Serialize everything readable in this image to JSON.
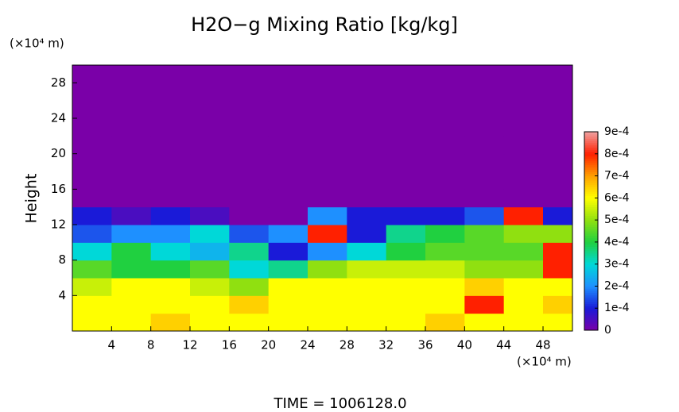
{
  "chart_data": {
    "type": "heatmap",
    "title": "H2O−g Mixing Ratio [kg/kg]",
    "x_unit": "(×10⁴ m)",
    "y_unit": "(×10⁴ m)",
    "y_label": "Height",
    "footer": "TIME  =  1006128.0",
    "xbins": [
      0,
      4,
      8,
      12,
      16,
      20,
      24,
      28,
      32,
      36,
      40,
      44,
      48,
      51
    ],
    "ybins": [
      0,
      2,
      4,
      6,
      8,
      10,
      12,
      14,
      16,
      18,
      20,
      22,
      24,
      26,
      28,
      30
    ],
    "xlim": [
      0,
      51
    ],
    "ylim": [
      0,
      30
    ],
    "xticks": [
      4,
      8,
      12,
      16,
      20,
      24,
      28,
      32,
      36,
      40,
      44,
      48
    ],
    "yticks": [
      4,
      8,
      12,
      16,
      20,
      24,
      28
    ],
    "z": [
      [
        0.0006,
        0.0006,
        0.00065,
        0.0006,
        0.0006,
        0.0006,
        0.0006,
        0.0006,
        0.0006,
        0.00065,
        0.0006,
        0.0006,
        0.0006
      ],
      [
        0.0006,
        0.0006,
        0.0006,
        0.0006,
        0.00065,
        0.0006,
        0.0006,
        0.0006,
        0.0006,
        0.0006,
        0.0008,
        0.0006,
        0.00065
      ],
      [
        0.00055,
        0.0006,
        0.0006,
        0.00055,
        0.0005,
        0.0006,
        0.0006,
        0.0006,
        0.0006,
        0.0006,
        0.00065,
        0.0006,
        0.0006
      ],
      [
        0.00045,
        0.0004,
        0.0004,
        0.00045,
        0.0003,
        0.00035,
        0.0005,
        0.00055,
        0.00055,
        0.00055,
        0.0005,
        0.0005,
        0.0008
      ],
      [
        0.0003,
        0.0004,
        0.0003,
        0.00025,
        0.00035,
        0.0001,
        0.0002,
        0.0003,
        0.0004,
        0.00045,
        0.00045,
        0.00045,
        0.0008
      ],
      [
        0.00015,
        0.0002,
        0.0002,
        0.0003,
        0.00015,
        0.0002,
        0.0008,
        0.0001,
        0.00035,
        0.0004,
        0.00045,
        0.0005,
        0.0005
      ],
      [
        0.0001,
        5e-05,
        0.0001,
        5e-05,
        0,
        0,
        0.0002,
        0.0001,
        0.0001,
        0.0001,
        0.00015,
        0.0008,
        0.0001
      ],
      [
        0,
        0,
        0,
        0,
        0,
        0,
        0,
        0,
        0,
        0,
        0,
        0,
        0
      ],
      [
        0,
        0,
        0,
        0,
        0,
        0,
        0,
        0,
        0,
        0,
        0,
        0,
        0
      ],
      [
        0,
        0,
        0,
        0,
        0,
        0,
        0,
        0,
        0,
        0,
        0,
        0,
        0
      ],
      [
        0,
        0,
        0,
        0,
        0,
        0,
        0,
        0,
        0,
        0,
        0,
        0,
        0
      ],
      [
        0,
        0,
        0,
        0,
        0,
        0,
        0,
        0,
        0,
        0,
        0,
        0,
        0
      ],
      [
        0,
        0,
        0,
        0,
        0,
        0,
        0,
        0,
        0,
        0,
        0,
        0,
        0
      ],
      [
        0,
        0,
        0,
        0,
        0,
        0,
        0,
        0,
        0,
        0,
        0,
        0,
        0
      ],
      [
        0,
        0,
        0,
        0,
        0,
        0,
        0,
        0,
        0,
        0,
        0,
        0,
        0
      ]
    ],
    "clim": [
      0,
      0.0009
    ],
    "cticks": [
      0,
      {
        "value": 0.0001,
        "label": "1e-4"
      },
      {
        "value": 0.0002,
        "label": "2e-4"
      },
      {
        "value": 0.0003,
        "label": "3e-4"
      },
      {
        "value": 0.0004,
        "label": "4e-4"
      },
      {
        "value": 0.0005,
        "label": "5e-4"
      },
      {
        "value": 0.0006,
        "label": "6e-4"
      },
      {
        "value": 0.0007,
        "label": "7e-4"
      },
      {
        "value": 0.0008,
        "label": "8e-4"
      },
      {
        "value": 0.0009,
        "label": "9e-4"
      }
    ],
    "colors": [
      "#7a00a8",
      "#1a1ad8",
      "#1e90ff",
      "#00d8d8",
      "#20d040",
      "#90e010",
      "#ffff00",
      "#ffa000",
      "#ff2000",
      "#f0a0a0"
    ]
  }
}
